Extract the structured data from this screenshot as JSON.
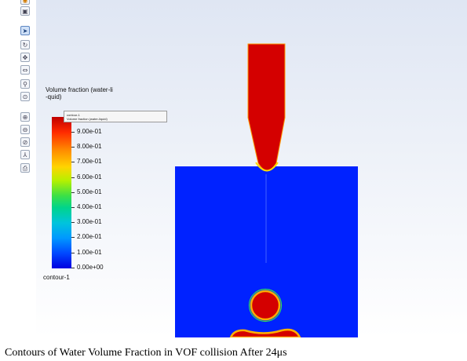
{
  "toolbar": {
    "buttons": [
      {
        "name": "orange-circle-icon",
        "glyph": "◉"
      },
      {
        "name": "window-icon",
        "glyph": "▣"
      },
      {
        "name": "pointer-select-icon",
        "glyph": "➤"
      },
      {
        "name": "rotate-icon",
        "glyph": "↻"
      },
      {
        "name": "pan-icon",
        "glyph": "✥"
      },
      {
        "name": "zoom-dynamic-icon",
        "glyph": "⇔"
      },
      {
        "name": "zoom-box-icon",
        "glyph": "⚲"
      },
      {
        "name": "zoom-to-fit-icon",
        "glyph": "⊙"
      },
      {
        "name": "zoom-in-icon",
        "glyph": "⊕"
      },
      {
        "name": "zoom-out-icon",
        "glyph": "⊖"
      },
      {
        "name": "zoom-region-icon",
        "glyph": "⊘"
      },
      {
        "name": "axes-icon",
        "glyph": "⅄"
      },
      {
        "name": "print-icon",
        "glyph": "⎙"
      }
    ]
  },
  "legend": {
    "title": "Volume fraction (water-li\n-quid)",
    "ticks": [
      "9.00e-01",
      "8.00e-01",
      "7.00e-01",
      "6.00e-01",
      "5.00e-01",
      "4.00e-01",
      "3.00e-01",
      "2.00e-01",
      "1.00e-01",
      "0.00e+00"
    ],
    "footer": "contour-1",
    "colors": {
      "max": "#c00000",
      "min": "#0000e0"
    }
  },
  "tooltip": {
    "line1": "contour-1",
    "line2": "Volume fraction (water-liquid)"
  },
  "colors": {
    "liquid": "#d40000",
    "gas": "#0022ff",
    "interface": "#ffb000"
  },
  "caption": "Contours of Water Volume Fraction in VOF collision After 24μs"
}
